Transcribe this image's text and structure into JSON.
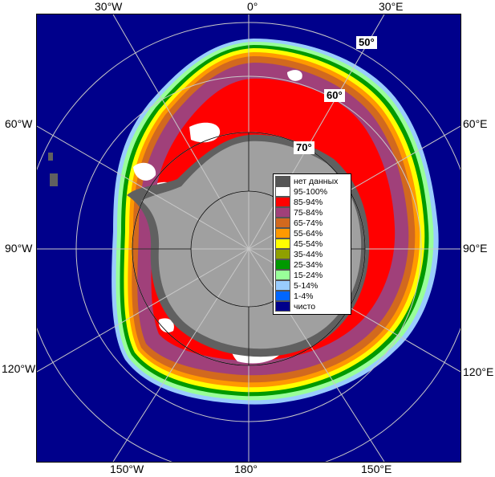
{
  "map": {
    "longitude_labels": {
      "top": [
        "30°W",
        "0°",
        "30°E"
      ],
      "left": [
        "60°W",
        "90°W",
        "120°W"
      ],
      "right": [
        "60°E",
        "90°E",
        "120°E"
      ],
      "bottom": [
        "150°W",
        "180°",
        "150°E"
      ]
    },
    "latitude_labels": [
      "50°",
      "60°",
      "70°"
    ],
    "colors": {
      "ocean": "#00008b",
      "land": "#a0a0a0",
      "no_data": "#606060",
      "graticule": "#c8c8c8"
    }
  },
  "legend": {
    "items": [
      {
        "label": "нет данных",
        "color": "#555555"
      },
      {
        "label": "95-100%",
        "color": "#ffffff"
      },
      {
        "label": "85-94%",
        "color": "#ff0000"
      },
      {
        "label": "75-84%",
        "color": "#a0407a"
      },
      {
        "label": "65-74%",
        "color": "#d2691e"
      },
      {
        "label": "55-64%",
        "color": "#ff9900"
      },
      {
        "label": "45-54%",
        "color": "#ffff00"
      },
      {
        "label": "35-44%",
        "color": "#8fa000"
      },
      {
        "label": "25-34%",
        "color": "#009900"
      },
      {
        "label": "15-24%",
        "color": "#99ff99"
      },
      {
        "label": "5-14%",
        "color": "#99ccff"
      },
      {
        "label": "1-4%",
        "color": "#0066ff"
      },
      {
        "label": "чисто",
        "color": "#00008b"
      }
    ]
  }
}
